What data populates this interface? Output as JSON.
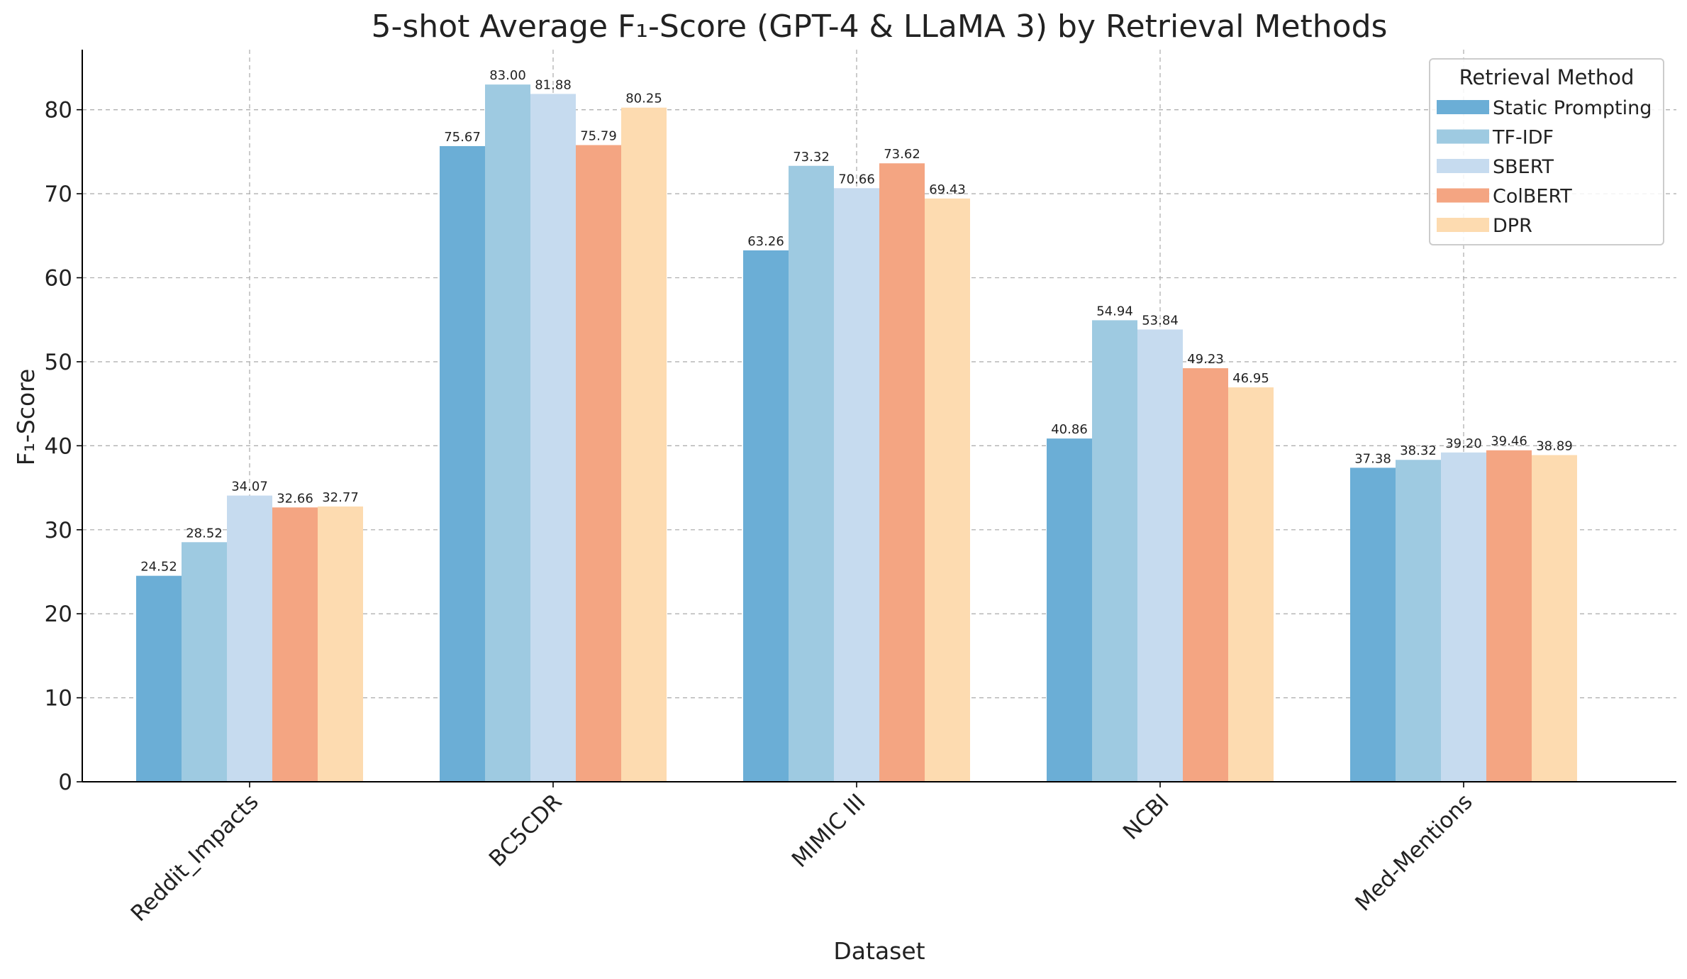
{
  "chart_data": {
    "type": "bar",
    "title": "5-shot Average F₁-Score (GPT-4 & LLaMA 3) by Retrieval Methods",
    "xlabel": "Dataset",
    "ylabel": "F₁-Score",
    "categories": [
      "Reddit_Impacts",
      "BC5CDR",
      "MIMIC III",
      "NCBI",
      "Med-Mentions"
    ],
    "ylim": [
      0,
      87.15
    ],
    "yticks": [
      0,
      10,
      20,
      30,
      40,
      50,
      60,
      70,
      80
    ],
    "grid": true,
    "legend": {
      "title": "Retrieval Method",
      "position": "top-right"
    },
    "series": [
      {
        "name": "Static Prompting",
        "color": "#6baed6",
        "values": [
          24.52,
          75.67,
          63.26,
          40.86,
          37.38
        ],
        "labels": [
          "24.52",
          "75.67",
          "63.26",
          "40.86",
          "37.38"
        ]
      },
      {
        "name": "TF-IDF",
        "color": "#9ecae1",
        "values": [
          28.52,
          83.0,
          73.32,
          54.94,
          38.32
        ],
        "labels": [
          "28.52",
          "83.00",
          "73.32",
          "54.94",
          "38.32"
        ]
      },
      {
        "name": "SBERT",
        "color": "#c6dbef",
        "values": [
          34.07,
          81.88,
          70.66,
          53.84,
          39.2
        ],
        "labels": [
          "34.07",
          "81.88",
          "70.66",
          "53.84",
          "39.20"
        ]
      },
      {
        "name": "ColBERT",
        "color": "#f4a582",
        "values": [
          32.66,
          75.79,
          73.62,
          49.23,
          39.46
        ],
        "labels": [
          "32.66",
          "75.79",
          "73.62",
          "49.23",
          "39.46"
        ]
      },
      {
        "name": "DPR",
        "color": "#fddbb0",
        "values": [
          32.77,
          80.25,
          69.43,
          46.95,
          38.89
        ],
        "labels": [
          "32.77",
          "80.25",
          "69.43",
          "46.95",
          "38.89"
        ]
      }
    ]
  }
}
